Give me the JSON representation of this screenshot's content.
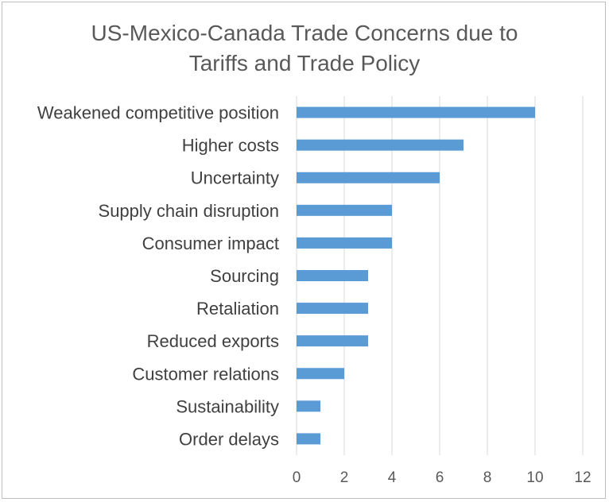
{
  "chart_data": {
    "type": "bar",
    "orientation": "horizontal",
    "title": "US-Mexico-Canada Trade Concerns due to Tariffs and Trade Policy",
    "title_lines": [
      "US-Mexico-Canada Trade Concerns due to",
      "Tariffs and Trade Policy"
    ],
    "categories": [
      "Weakened competitive position",
      "Higher costs",
      "Uncertainty",
      "Supply chain disruption",
      "Consumer impact",
      "Sourcing",
      "Retaliation",
      "Reduced exports",
      "Customer relations",
      "Sustainability",
      "Order delays"
    ],
    "values": [
      10,
      7,
      6,
      4,
      4,
      3,
      3,
      3,
      2,
      1,
      1
    ],
    "xlim": [
      0,
      12
    ],
    "xticks": [
      "0",
      "2",
      "4",
      "6",
      "8",
      "10",
      "12"
    ],
    "xlabel": "",
    "ylabel": "",
    "grid": "vertical",
    "legend": "none",
    "bar_color": "#5b9bd5",
    "grid_color": "#d9d9d9"
  }
}
